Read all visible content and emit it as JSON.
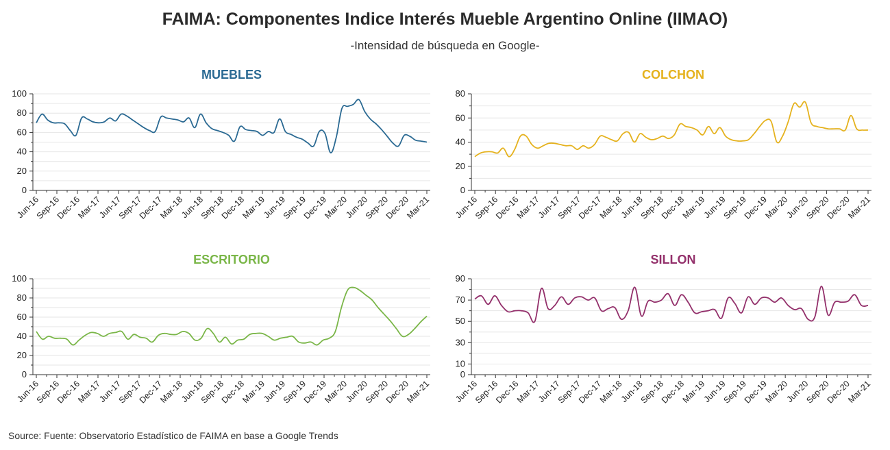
{
  "title": "FAIMA: Componentes Indice Interés Mueble Argentino Online (IIMAO)",
  "subtitle": "-Intensidad de búsqueda en Google-",
  "source": "Source: Fuente: Observatorio Estadístico de FAIMA en base a Google Trends",
  "colors": {
    "muebles": "#2b6a93",
    "colchon": "#e5b21e",
    "escritorio": "#7ab648",
    "sillon": "#93306b",
    "grid": "#e6e6e6",
    "axis": "#333333"
  },
  "chart_data": [
    {
      "type": "line",
      "title": "MUEBLES",
      "color": "#2b6a93",
      "xtick_labels": [
        "Jun-16",
        "Sep-16",
        "Dec-16",
        "Mar-17",
        "Jun-17",
        "Sep-17",
        "Dec-17",
        "Mar-18",
        "Jun-18",
        "Sep-18",
        "Dec-18",
        "Mar-19",
        "Jun-19",
        "Sep-19",
        "Dec-19",
        "Mar-20",
        "Jun-20",
        "Sep-20",
        "Dec-20",
        "Mar-21"
      ],
      "ylim": [
        0,
        100
      ],
      "yticks": [
        0,
        20,
        40,
        60,
        80,
        100
      ],
      "grid": true,
      "values": [
        70,
        79,
        73,
        70,
        70,
        69,
        62,
        57,
        75,
        74,
        71,
        70,
        71,
        75,
        72,
        79,
        77,
        73,
        69,
        65,
        62,
        61,
        76,
        75,
        74,
        73,
        71,
        75,
        65,
        79,
        70,
        64,
        62,
        60,
        57,
        51,
        66,
        63,
        62,
        61,
        57,
        61,
        60,
        74,
        61,
        58,
        55,
        53,
        49,
        46,
        61,
        59,
        39,
        55,
        85,
        87,
        89,
        94,
        82,
        74,
        69,
        63,
        56,
        49,
        46,
        57,
        56,
        52,
        51,
        50
      ]
    },
    {
      "type": "line",
      "title": "COLCHON",
      "color": "#e5b21e",
      "xtick_labels": [
        "Jun-16",
        "Sep-16",
        "Dec-16",
        "Mar-17",
        "Jun-17",
        "Sep-17",
        "Dec-17",
        "Mar-18",
        "Jun-18",
        "Sep-18",
        "Dec-18",
        "Mar-19",
        "Jun-19",
        "Sep-19",
        "Dec-19",
        "Mar-20",
        "Jun-20",
        "Sep-20",
        "Dec-20",
        "Mar-21"
      ],
      "ylim": [
        0,
        80
      ],
      "yticks": [
        0,
        20,
        40,
        60,
        80
      ],
      "grid": true,
      "values": [
        28,
        31,
        32,
        32,
        31,
        35,
        28,
        34,
        45,
        45,
        38,
        35,
        37,
        39,
        39,
        38,
        37,
        37,
        34,
        37,
        35,
        38,
        45,
        44,
        42,
        41,
        47,
        48,
        40,
        47,
        44,
        42,
        43,
        45,
        43,
        46,
        55,
        53,
        52,
        50,
        46,
        53,
        47,
        52,
        45,
        42,
        41,
        41,
        42,
        47,
        53,
        58,
        57,
        40,
        45,
        57,
        72,
        69,
        73,
        56,
        53,
        52,
        51,
        51,
        51,
        50,
        62,
        51,
        50,
        50
      ]
    },
    {
      "type": "line",
      "title": "ESCRITORIO",
      "color": "#7ab648",
      "xtick_labels": [
        "Jun-16",
        "Sep-16",
        "Dec-16",
        "Mar-17",
        "Jun-17",
        "Sep-17",
        "Dec-17",
        "Mar-18",
        "Jun-18",
        "Sep-18",
        "Dec-18",
        "Mar-19",
        "Jun-19",
        "Sep-19",
        "Dec-19",
        "Mar-20",
        "Jun-20",
        "Sep-20",
        "Dec-20",
        "Mar-21"
      ],
      "ylim": [
        0,
        100
      ],
      "yticks": [
        0,
        20,
        40,
        60,
        80,
        100
      ],
      "grid": true,
      "values": [
        45,
        37,
        40,
        38,
        38,
        37,
        31,
        36,
        41,
        44,
        43,
        40,
        43,
        44,
        45,
        37,
        42,
        39,
        38,
        34,
        41,
        43,
        42,
        42,
        45,
        43,
        36,
        38,
        48,
        43,
        34,
        39,
        32,
        36,
        37,
        42,
        43,
        43,
        40,
        36,
        38,
        39,
        40,
        34,
        33,
        34,
        31,
        36,
        38,
        45,
        70,
        88,
        91,
        88,
        83,
        78,
        70,
        63,
        56,
        48,
        40,
        42,
        48,
        55,
        61
      ]
    },
    {
      "type": "line",
      "title": "SILLON",
      "color": "#93306b",
      "xtick_labels": [
        "Jun-16",
        "Sep-16",
        "Dec-16",
        "Mar-17",
        "Jun-17",
        "Sep-17",
        "Dec-17",
        "Mar-18",
        "Jun-18",
        "Sep-18",
        "Dec-18",
        "Mar-19",
        "Jun-19",
        "Sep-19",
        "Dec-19",
        "Mar-20",
        "Jun-20",
        "Sep-20",
        "Dec-20",
        "Mar-21"
      ],
      "ylim": [
        0,
        90
      ],
      "yticks": [
        0,
        10,
        30,
        50,
        70,
        90
      ],
      "grid": true,
      "values": [
        71,
        74,
        66,
        74,
        65,
        59,
        60,
        60,
        58,
        50,
        81,
        62,
        65,
        73,
        66,
        72,
        73,
        70,
        72,
        60,
        62,
        63,
        52,
        60,
        82,
        55,
        69,
        68,
        70,
        76,
        65,
        75,
        68,
        58,
        59,
        60,
        61,
        53,
        72,
        67,
        58,
        73,
        66,
        72,
        72,
        68,
        72,
        65,
        61,
        62,
        52,
        54,
        83,
        56,
        68,
        68,
        69,
        75,
        65,
        65
      ]
    }
  ]
}
